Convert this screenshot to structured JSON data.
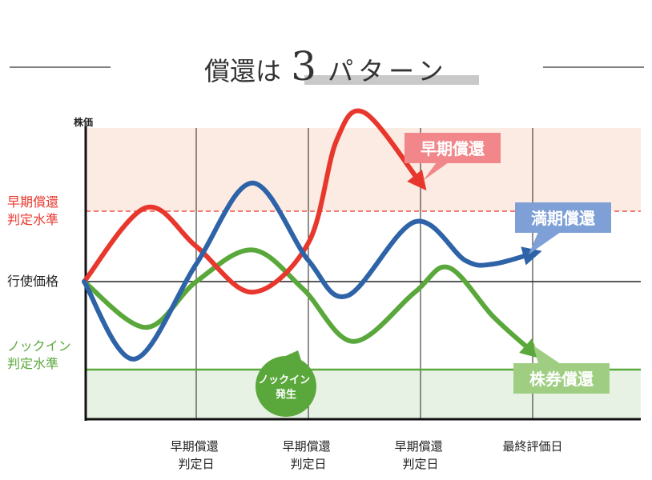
{
  "header": {
    "title_prefix": "償還は",
    "title_number": "3",
    "title_suffix": "パターン"
  },
  "chart_data": {
    "type": "line",
    "ylabel": "株価",
    "levels": [
      {
        "name": "early_redemption_level",
        "label_lines": [
          "早期償還",
          "判定水準"
        ],
        "color": "#e8372d",
        "value": 70
      },
      {
        "name": "strike_price",
        "label_lines": [
          "行使価格"
        ],
        "color": "#222222",
        "value": 50
      },
      {
        "name": "knock_in_level",
        "label_lines": [
          "ノックイン",
          "判定水準"
        ],
        "color": "#5aa83b",
        "value": 25
      }
    ],
    "ylim": [
      -20,
      110
    ],
    "xlim": [
      0,
      10
    ],
    "x_ticks": [
      {
        "x": 2,
        "lines": [
          "早期償還",
          "判定日"
        ]
      },
      {
        "x": 4,
        "lines": [
          "早期償還",
          "判定日"
        ]
      },
      {
        "x": 6,
        "lines": [
          "早期償還",
          "判定日"
        ]
      },
      {
        "x": 8,
        "lines": [
          "最終評価日"
        ]
      }
    ],
    "series": [
      {
        "key": "red",
        "color": "#e8372d",
        "points": [
          [
            0,
            50
          ],
          [
            1.1,
            71
          ],
          [
            2,
            60
          ],
          [
            3,
            47
          ],
          [
            4,
            61
          ],
          [
            4.5,
            90
          ],
          [
            5,
            98
          ],
          [
            6,
            78
          ]
        ]
      },
      {
        "key": "blue",
        "color": "#2e63a8",
        "points": [
          [
            0,
            50
          ],
          [
            0.9,
            28
          ],
          [
            2,
            55
          ],
          [
            3,
            78
          ],
          [
            4,
            56
          ],
          [
            4.7,
            46
          ],
          [
            5.9,
            67
          ],
          [
            6.8,
            56
          ],
          [
            7.3,
            55
          ],
          [
            8,
            58
          ]
        ]
      },
      {
        "key": "green",
        "color": "#5aa83b",
        "points": [
          [
            0,
            50
          ],
          [
            1.1,
            37
          ],
          [
            2,
            50
          ],
          [
            3,
            59
          ],
          [
            3.9,
            48
          ],
          [
            4.8,
            33
          ],
          [
            5.9,
            47
          ],
          [
            6.5,
            54
          ],
          [
            7.3,
            40
          ],
          [
            8,
            30
          ]
        ]
      }
    ],
    "callouts": [
      {
        "key": "early",
        "text": "早期償還",
        "color": "#f1878a"
      },
      {
        "key": "maturity",
        "text": "満期償還",
        "color": "#7ea0d6"
      },
      {
        "key": "stock",
        "text": "株券償還",
        "color": "#9fce82"
      },
      {
        "key": "knockin",
        "lines": [
          "ノックイン",
          "発生"
        ],
        "color": "#5aa83b"
      }
    ],
    "zones": {
      "upper_color": "#fcebe2",
      "lower_color": "#e8f2e4"
    },
    "grid": true
  }
}
